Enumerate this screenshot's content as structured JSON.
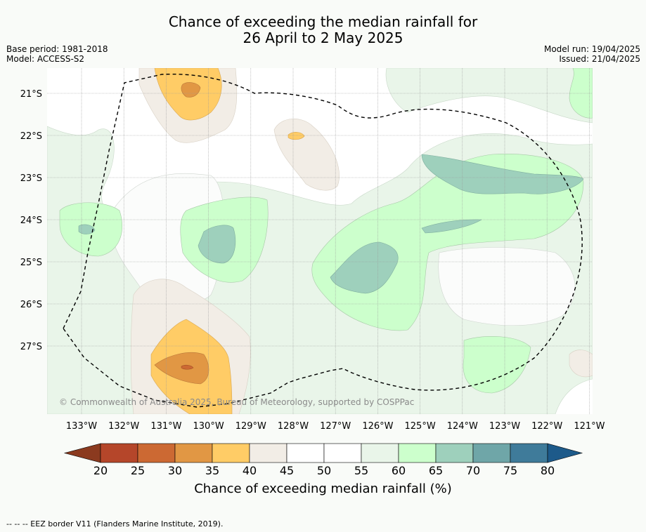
{
  "title_line1": "Chance of exceeding the median rainfall for",
  "title_line2": "26 April to 2 May 2025",
  "base_period": "Base period: 1981-2018",
  "model": "Model: ACCESS-S2",
  "model_run": "Model run: 19/04/2025",
  "issued": "Issued: 21/04/2025",
  "lat_labels": [
    "21°S",
    "22°S",
    "23°S",
    "24°S",
    "25°S",
    "26°S",
    "27°S"
  ],
  "lon_labels": [
    "133°W",
    "132°W",
    "131°W",
    "130°W",
    "129°W",
    "128°W",
    "127°W",
    "126°W",
    "125°W",
    "124°W",
    "123°W",
    "122°W",
    "121°W"
  ],
  "colorbar": {
    "ticks": [
      "20",
      "25",
      "30",
      "35",
      "40",
      "45",
      "50",
      "55",
      "60",
      "65",
      "70",
      "75",
      "80"
    ],
    "colors": [
      "#8b3a1f",
      "#b5462a",
      "#cc6933",
      "#e19744",
      "#ffcc66",
      "#f2ede6",
      "#ffffff",
      "#ffffff",
      "#e9f5e9",
      "#ccffcc",
      "#9ed0bc",
      "#6fa6a8",
      "#3f7b9a",
      "#1d5a8a"
    ],
    "title": "Chance of exceeding median rainfall (%)"
  },
  "credit": "© Commonwealth of Australia 2025, Bureau of Meteorology, supported by COSPPac",
  "legend_text": "--  --  -- EEZ border V11 (Flanders Marine Institute, 2019)."
}
